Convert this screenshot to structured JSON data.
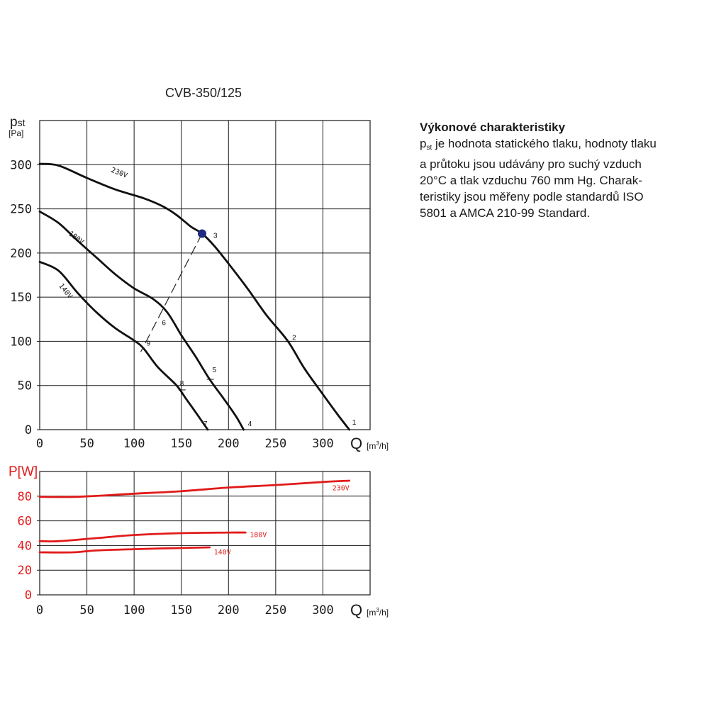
{
  "title": "CVB-350/125",
  "description": {
    "heading": "Výkonové charakteristiky",
    "line1_symbol": "p",
    "line1_sub": "st",
    "line1_rest": " je hodnota statického tlaku, hodnoty tlaku",
    "line2": "a průtoku jsou udávány pro suchý vzduch",
    "line3": "20°C a tlak vzduchu 760 mm Hg. Charak-",
    "line4": "teristiky jsou měřeny podle standardů ISO",
    "line5": "5801 a AMCA 210-99 Standard."
  },
  "chart_data": [
    {
      "type": "line",
      "ylabel_symbol": "pst",
      "ylabel_unit": "[Pa]",
      "xlabel_symbol": "Q",
      "xlabel_unit_prefix": "[m",
      "xlabel_unit_sup": "3",
      "xlabel_unit_suffix": "/h]",
      "xlim": [
        0,
        350
      ],
      "ylim": [
        0,
        350
      ],
      "xticks": [
        0,
        50,
        100,
        150,
        200,
        250,
        300
      ],
      "yticks": [
        0,
        50,
        100,
        150,
        200,
        250,
        300
      ],
      "grid": true,
      "series": [
        {
          "name": "230V",
          "points": [
            [
              0,
              301
            ],
            [
              20,
              299
            ],
            [
              50,
              285
            ],
            [
              80,
              272
            ],
            [
              110,
              262
            ],
            [
              130,
              253
            ],
            [
              145,
              243
            ],
            [
              160,
              230
            ],
            [
              172,
              222
            ],
            [
              185,
              208
            ],
            [
              200,
              188
            ],
            [
              220,
              160
            ],
            [
              240,
              130
            ],
            [
              263,
              100
            ],
            [
              280,
              70
            ],
            [
              300,
              40
            ],
            [
              315,
              18
            ],
            [
              328,
              0
            ]
          ]
        },
        {
          "name": "180V",
          "points": [
            [
              0,
              247
            ],
            [
              20,
              234
            ],
            [
              40,
              214
            ],
            [
              60,
              195
            ],
            [
              80,
              176
            ],
            [
              100,
              160
            ],
            [
              120,
              148
            ],
            [
              135,
              133
            ],
            [
              150,
              107
            ],
            [
              165,
              83
            ],
            [
              180,
              57
            ],
            [
              195,
              35
            ],
            [
              208,
              15
            ],
            [
              216,
              0
            ]
          ]
        },
        {
          "name": "140V",
          "points": [
            [
              0,
              190
            ],
            [
              20,
              180
            ],
            [
              40,
              155
            ],
            [
              60,
              133
            ],
            [
              80,
              115
            ],
            [
              100,
              101
            ],
            [
              110,
              92
            ],
            [
              125,
              71
            ],
            [
              145,
              50
            ],
            [
              155,
              35
            ],
            [
              165,
              20
            ],
            [
              178,
              0
            ]
          ]
        }
      ],
      "operating_points": [
        {
          "label": "1",
          "x": 328,
          "y": 0
        },
        {
          "label": "2",
          "x": 263,
          "y": 100
        },
        {
          "label": "3",
          "x": 172,
          "y": 222
        },
        {
          "label": "4",
          "x": 216,
          "y": 0
        },
        {
          "label": "5",
          "x": 180,
          "y": 57
        },
        {
          "label": "6",
          "x": 140,
          "y": 120
        },
        {
          "label": "7",
          "x": 178,
          "y": 0
        },
        {
          "label": "8",
          "x": 150,
          "y": 45
        },
        {
          "label": "9",
          "x": 110,
          "y": 92
        }
      ],
      "marker": {
        "x": 172,
        "y": 222,
        "color": "#1f2a80"
      },
      "system_curve": [
        [
          172,
          222
        ],
        [
          107,
          88
        ]
      ]
    },
    {
      "type": "line",
      "ylabel": "P[W]",
      "xlabel_symbol": "Q",
      "xlabel_unit_prefix": "[m",
      "xlabel_unit_sup": "3",
      "xlabel_unit_suffix": "/h]",
      "xlim": [
        0,
        350
      ],
      "ylim": [
        0,
        100
      ],
      "xticks": [
        0,
        50,
        100,
        150,
        200,
        250,
        300
      ],
      "yticks": [
        0,
        20,
        40,
        60,
        80
      ],
      "grid": true,
      "series_color": "#e11b1b",
      "series": [
        {
          "name": "230V",
          "points": [
            [
              0,
              79.5
            ],
            [
              40,
              79.5
            ],
            [
              100,
              82
            ],
            [
              150,
              84
            ],
            [
              200,
              87
            ],
            [
              250,
              89
            ],
            [
              300,
              91.5
            ],
            [
              328,
              92.5
            ]
          ]
        },
        {
          "name": "180V",
          "points": [
            [
              0,
              43.5
            ],
            [
              20,
              43.5
            ],
            [
              60,
              46
            ],
            [
              100,
              48.5
            ],
            [
              150,
              50
            ],
            [
              200,
              50.5
            ],
            [
              218,
              50.5
            ]
          ]
        },
        {
          "name": "140V",
          "points": [
            [
              0,
              34.5
            ],
            [
              35,
              34.5
            ],
            [
              60,
              36
            ],
            [
              100,
              37
            ],
            [
              150,
              38
            ],
            [
              180,
              38.5
            ]
          ]
        }
      ]
    }
  ]
}
